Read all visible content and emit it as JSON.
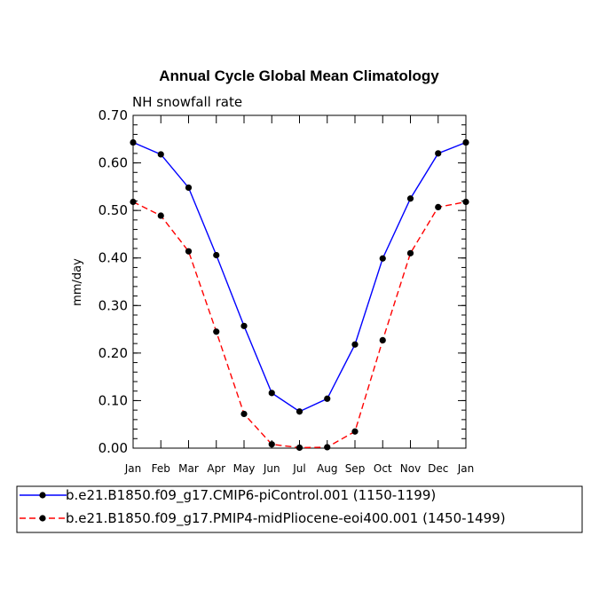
{
  "chart_data": {
    "type": "line",
    "title": "Annual Cycle Global Mean Climatology",
    "subtitle": "NH snowfall rate",
    "xlabel": "",
    "ylabel": "mm/day",
    "ylim": [
      0,
      0.7
    ],
    "yticks": [
      "0.00",
      "0.10",
      "0.20",
      "0.30",
      "0.40",
      "0.50",
      "0.60",
      "0.70"
    ],
    "ytick_values": [
      0,
      0.1,
      0.2,
      0.3,
      0.4,
      0.5,
      0.6,
      0.7
    ],
    "categories": [
      "Jan",
      "Feb",
      "Mar",
      "Apr",
      "May",
      "Jun",
      "Jul",
      "Aug",
      "Sep",
      "Oct",
      "Nov",
      "Dec",
      "Jan"
    ],
    "series": [
      {
        "name": "b.e21.B1850.f09_g17.CMIP6-piControl.001 (1150-1199)",
        "color": "#0000ff",
        "dash": "solid",
        "values": [
          0.643,
          0.618,
          0.548,
          0.406,
          0.257,
          0.116,
          0.077,
          0.104,
          0.218,
          0.399,
          0.525,
          0.62,
          0.643
        ]
      },
      {
        "name": "b.e21.B1850.f09_g17.PMIP4-midPliocene-eoi400.001 (1450-1499)",
        "color": "#ff0000",
        "dash": "dashed",
        "values": [
          0.518,
          0.489,
          0.414,
          0.245,
          0.072,
          0.008,
          0.001,
          0.002,
          0.035,
          0.227,
          0.41,
          0.507,
          0.518
        ]
      }
    ],
    "legend_position": "bottom"
  }
}
